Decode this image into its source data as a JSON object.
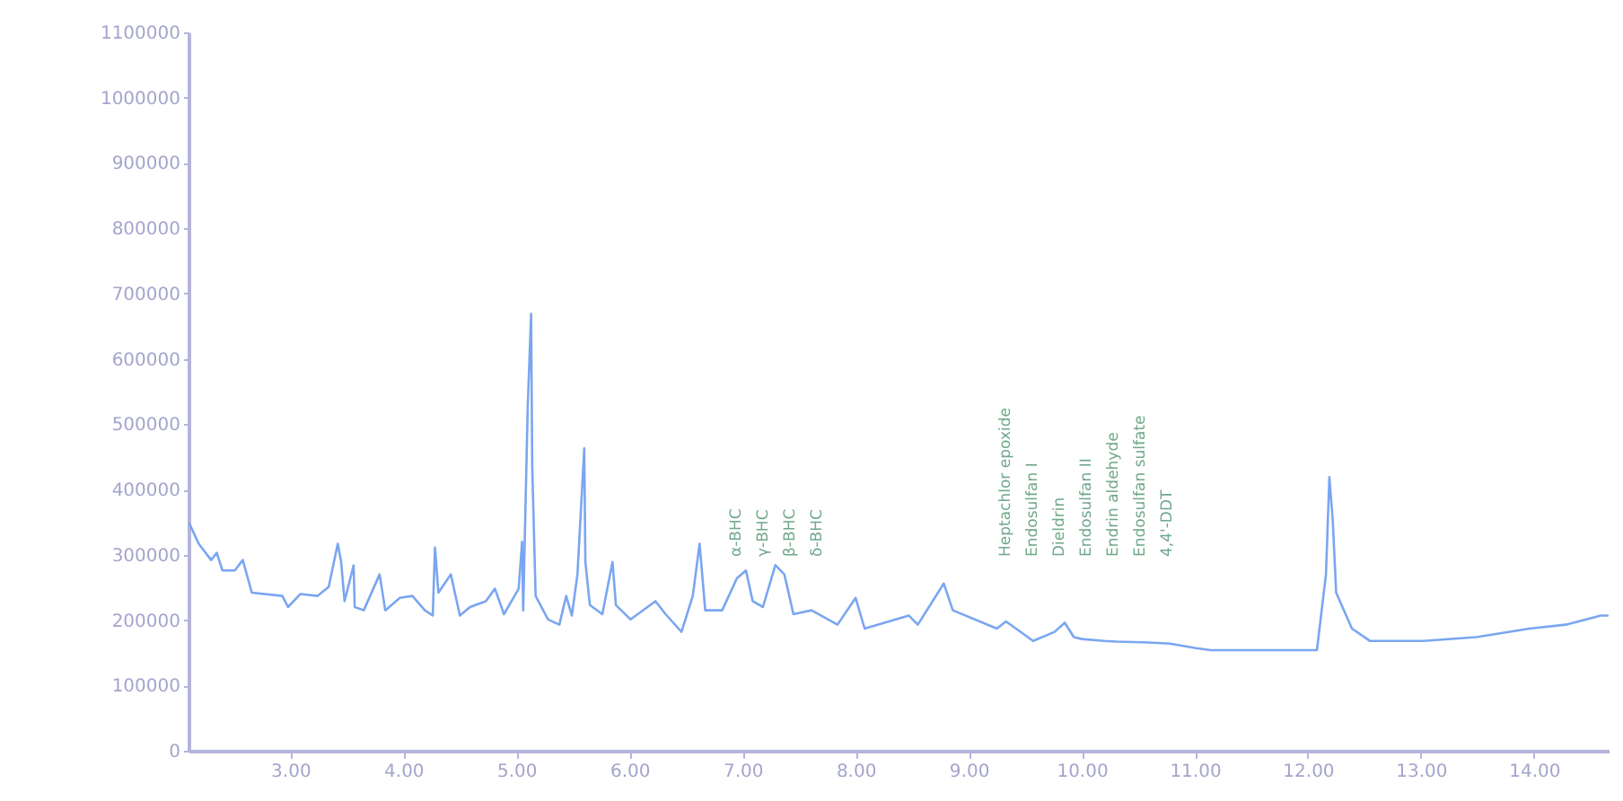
{
  "chart_data": {
    "type": "line",
    "xlim": [
      2.1,
      14.66
    ],
    "xticks": [
      {
        "value": 3,
        "label": "3.00"
      },
      {
        "value": 4,
        "label": "4.00"
      },
      {
        "value": 5,
        "label": "5.00"
      },
      {
        "value": 6,
        "label": "6.00"
      },
      {
        "value": 7,
        "label": "7.00"
      },
      {
        "value": 8,
        "label": "8.00"
      },
      {
        "value": 9,
        "label": "9.00"
      },
      {
        "value": 10,
        "label": "10.00"
      },
      {
        "value": 11,
        "label": "11.00"
      },
      {
        "value": 12,
        "label": "12.00"
      },
      {
        "value": 13,
        "label": "13.00"
      },
      {
        "value": 14,
        "label": "14.00"
      }
    ],
    "ylim": [
      0,
      1100000
    ],
    "yticks": [
      0,
      100000,
      200000,
      300000,
      400000,
      500000,
      600000,
      700000,
      800000,
      900000,
      1000000,
      1100000
    ],
    "grid": false,
    "series": [
      {
        "color": "#7aa6f0",
        "x": [
          2.11,
          2.19,
          2.3,
          2.35,
          2.4,
          2.51,
          2.58,
          2.66,
          2.93,
          2.98,
          3.09,
          3.24,
          3.34,
          3.42,
          3.45,
          3.48,
          3.56,
          3.57,
          3.65,
          3.79,
          3.84,
          3.97,
          4.08,
          4.19,
          4.26,
          4.28,
          4.31,
          4.42,
          4.5,
          4.59,
          4.73,
          4.81,
          4.89,
          5.02,
          5.05,
          5.06,
          5.1,
          5.13,
          5.14,
          5.17,
          5.28,
          5.38,
          5.44,
          5.49,
          5.54,
          5.6,
          5.61,
          5.65,
          5.76,
          5.85,
          5.88,
          6.01,
          6.23,
          6.32,
          6.46,
          6.56,
          6.62,
          6.67,
          6.82,
          6.95,
          7.03,
          7.09,
          7.18,
          7.29,
          7.37,
          7.45,
          7.53,
          7.61,
          7.84,
          8.0,
          8.08,
          8.47,
          8.55,
          8.78,
          8.86,
          9.25,
          9.33,
          9.57,
          9.76,
          9.85,
          9.93,
          10.0,
          10.2,
          10.31,
          10.54,
          10.67,
          10.78,
          11.01,
          11.14,
          11.45,
          12.08,
          12.16,
          12.19,
          12.22,
          12.25,
          12.39,
          12.55,
          13.02,
          13.49,
          13.96,
          14.28,
          14.59,
          14.65
        ],
        "values": [
          347000,
          317000,
          292000,
          303000,
          276000,
          276000,
          292000,
          242000,
          237000,
          220000,
          240000,
          237000,
          251000,
          317000,
          289000,
          229000,
          284000,
          220000,
          215000,
          270000,
          215000,
          234000,
          237000,
          215000,
          207000,
          311000,
          242000,
          270000,
          207000,
          220000,
          229000,
          248000,
          209000,
          248000,
          320000,
          215000,
          526000,
          669000,
          435000,
          237000,
          201000,
          193000,
          237000,
          207000,
          270000,
          463000,
          289000,
          223000,
          209000,
          289000,
          223000,
          201000,
          229000,
          209000,
          182000,
          237000,
          317000,
          215000,
          215000,
          264000,
          276000,
          229000,
          220000,
          284000,
          270000,
          209000,
          212000,
          215000,
          193000,
          234000,
          187000,
          207000,
          193000,
          256000,
          215000,
          187000,
          198000,
          168000,
          182000,
          196000,
          174000,
          171000,
          168000,
          167000,
          166000,
          165000,
          164000,
          157000,
          154000,
          154000,
          154000,
          270000,
          419000,
          353000,
          242000,
          187000,
          168000,
          168000,
          174000,
          187000,
          193000,
          207000,
          207000
        ]
      }
    ],
    "annotations": [
      "α-BHC",
      "γ-BHC",
      "β-BHC",
      "δ-BHC",
      "Heptachlor epoxide",
      "Endosulfan I",
      "Dieldrin",
      "Endosulfan II",
      "Endrin aldehyde",
      "Endosulfan sulfate",
      "4,4'-DDT"
    ]
  }
}
